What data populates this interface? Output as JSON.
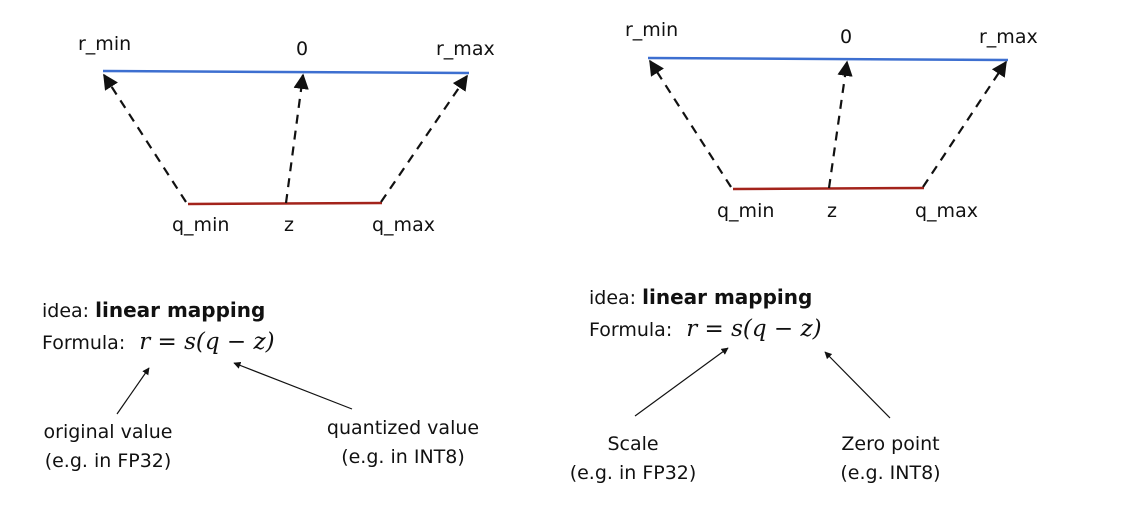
{
  "panels": [
    {
      "top_labels": {
        "min": "r_min",
        "zero": "0",
        "max": "r_max"
      },
      "bottom_labels": {
        "min": "q_min",
        "z": "z",
        "max": "q_max"
      },
      "idea_prefix": "idea: ",
      "idea_bold": "linear mapping",
      "formula_label": "Formula:",
      "formula": "r = s(q − z)",
      "annotations": [
        {
          "line1": "original value",
          "line2": "(e.g. in FP32)"
        },
        {
          "line1": "quantized value",
          "line2": "(e.g. in INT8)"
        }
      ]
    },
    {
      "top_labels": {
        "min": "r_min",
        "zero": "0",
        "max": "r_max"
      },
      "bottom_labels": {
        "min": "q_min",
        "z": "z",
        "max": "q_max"
      },
      "idea_prefix": "idea: ",
      "idea_bold": "linear mapping",
      "formula_label": "Formula:",
      "formula": "r = s(q − z)",
      "annotations": [
        {
          "line1": "Scale",
          "line2": "(e.g. in FP32)"
        },
        {
          "line1": "Zero point",
          "line2": "(e.g. INT8)"
        }
      ]
    }
  ],
  "colors": {
    "real_line": "#3d6fd0",
    "quant_line": "#a3231b",
    "arrow": "#111111"
  }
}
